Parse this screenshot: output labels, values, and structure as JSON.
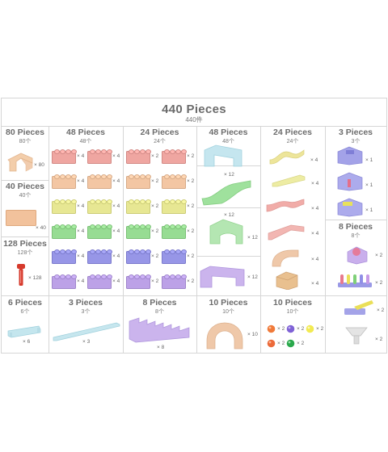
{
  "header": {
    "title": "440 Pieces",
    "subtitle": "440件"
  },
  "colors": {
    "peach": "#f2c29c",
    "salmon": "#ee9f9a",
    "lemon": "#e6e68a",
    "green": "#8fda8a",
    "blue": "#8f8ee6",
    "purple": "#b79ae6",
    "aqua": "#b8e2ea",
    "red": "#d63a2c",
    "tan": "#e9bf8f",
    "grid": "#d6d6d6"
  },
  "groups": {
    "g80": {
      "name": "80 Pieces",
      "count": "80个",
      "qty": "× 80"
    },
    "g40": {
      "name": "40 Pieces",
      "count": "40个",
      "qty": "× 40"
    },
    "g128": {
      "name": "128 Pieces",
      "count": "128个",
      "qty": "× 128"
    },
    "g48a": {
      "name": "48 Pieces",
      "count": "48个",
      "qtys": [
        "× 4",
        "× 4",
        "× 4",
        "× 4",
        "× 4",
        "× 4",
        "× 4",
        "× 4",
        "× 4",
        "× 4",
        "× 4",
        "× 4"
      ]
    },
    "g24a": {
      "name": "24 Pieces",
      "count": "24个",
      "qtys": [
        "× 2",
        "× 2",
        "× 2",
        "× 2",
        "× 2",
        "× 2",
        "× 2",
        "× 2",
        "× 2",
        "× 2",
        "× 2",
        "× 2"
      ]
    },
    "g48b": {
      "name": "48 Pieces",
      "count": "48个",
      "qtys": [
        "× 12",
        "× 12",
        "× 12",
        "× 12"
      ]
    },
    "g24b": {
      "name": "24 Pieces",
      "count": "24个",
      "qtys": [
        "× 4",
        "× 4",
        "× 4",
        "× 4",
        "× 4",
        "× 4"
      ]
    },
    "g3a": {
      "name": "3 Pieces",
      "count": "3个",
      "qtys": [
        "× 1",
        "× 1",
        "× 1"
      ]
    },
    "g8a": {
      "name": "8 Pieces",
      "count": "8个",
      "qtys": [
        "× 2",
        "× 2",
        "× 2",
        "× 2"
      ]
    },
    "g6": {
      "name": "6 Pieces",
      "count": "6个",
      "qty": "× 6"
    },
    "g3b": {
      "name": "3 Pieces",
      "count": "3个",
      "qty": "× 3"
    },
    "g8b": {
      "name": "8 Pieces",
      "count": "8个",
      "qty": "× 8"
    },
    "g10a": {
      "name": "10 Pieces",
      "count": "10个",
      "qty": "× 10"
    },
    "g10b": {
      "name": "10 Pieces",
      "count": "10个",
      "qtys": [
        "× 2",
        "× 2",
        "× 2",
        "× 2",
        "× 2"
      ]
    }
  }
}
